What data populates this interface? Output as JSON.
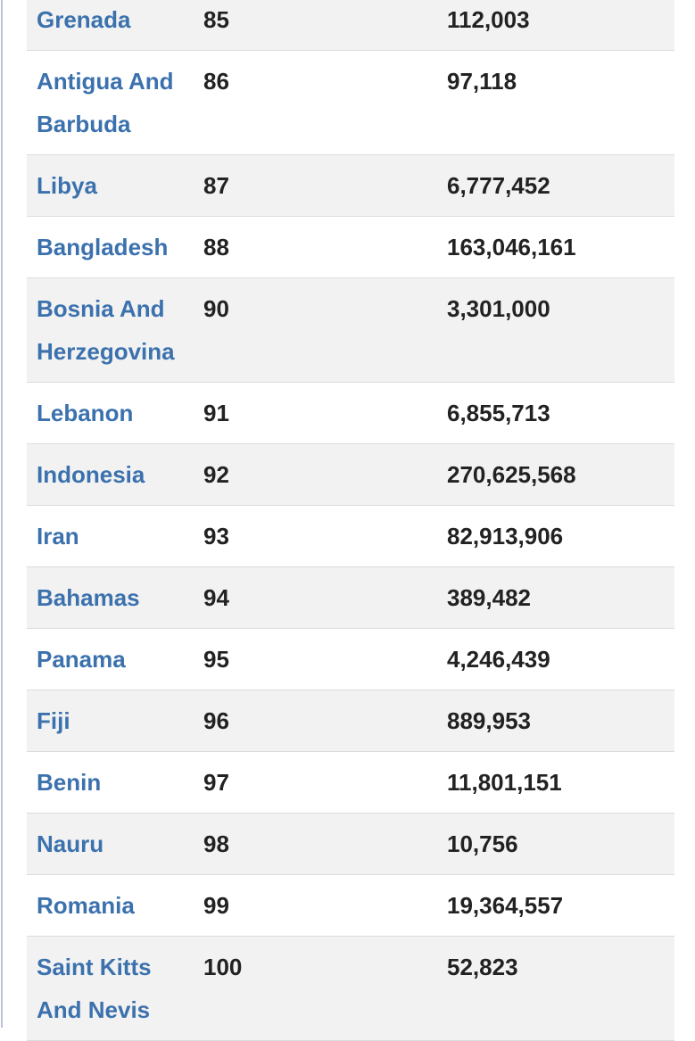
{
  "table": {
    "rows": [
      [
        "Grenada",
        "85",
        "112,003"
      ],
      [
        "Antigua And Barbuda",
        "86",
        "97,118"
      ],
      [
        "Libya",
        "87",
        "6,777,452"
      ],
      [
        "Bangladesh",
        "88",
        "163,046,161"
      ],
      [
        "Bosnia And Herzegovina",
        "90",
        "3,301,000"
      ],
      [
        "Lebanon",
        "91",
        "6,855,713"
      ],
      [
        "Indonesia",
        "92",
        "270,625,568"
      ],
      [
        "Iran",
        "93",
        "82,913,906"
      ],
      [
        "Bahamas",
        "94",
        "389,482"
      ],
      [
        "Panama",
        "95",
        "4,246,439"
      ],
      [
        "Fiji",
        "96",
        "889,953"
      ],
      [
        "Benin",
        "97",
        "11,801,151"
      ],
      [
        "Nauru",
        "98",
        "10,756"
      ],
      [
        "Romania",
        "99",
        "19,364,557"
      ],
      [
        "Saint Kitts And Nevis",
        "100",
        "52,823"
      ]
    ]
  }
}
